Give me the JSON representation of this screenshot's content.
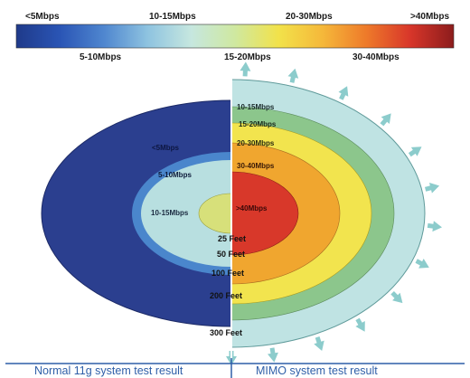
{
  "legend": {
    "top_labels": [
      "<5Mbps",
      "10-15Mbps",
      "20-30Mbps",
      ">40Mbps"
    ],
    "bottom_labels": [
      "5-10Mbps",
      "15-20Mbps",
      "30-40Mbps"
    ],
    "gradient_colors": [
      "#1f3a8a",
      "#2a55b5",
      "#4f86cf",
      "#8ec3e0",
      "#c6e7df",
      "#cfe8a0",
      "#f2e24a",
      "#f5b83a",
      "#ee7a2a",
      "#d8362a",
      "#8c1c1c"
    ]
  },
  "left_half": {
    "zone_labels": [
      "<5Mbps",
      "5-10Mbps",
      "10-15Mbps"
    ],
    "colors": {
      "outer": "#2b3f8f",
      "mid": "#4a86cc",
      "inner": "#b8dfe0",
      "core": "#d7e07a"
    }
  },
  "right_half": {
    "zone_labels": [
      "10-15Mbps",
      "15-20Mbps",
      "20-30Mbps",
      "30-40Mbps",
      ">40Mbps"
    ],
    "colors": {
      "outer": "#bfe3e3",
      "ring2": "#8cc68c",
      "ring3": "#f2e44e",
      "ring4": "#f0a62f",
      "core": "#d8382a"
    },
    "arrow_color": "#8ccccc"
  },
  "distances": [
    "25 Feet",
    "50 Feet",
    "100 Feet",
    "200 Feet",
    "300 Feet"
  ],
  "footer": {
    "left_text": "Normal 11g system test result",
    "right_text": "MIMO system test result",
    "color": "#2f5fa8"
  }
}
